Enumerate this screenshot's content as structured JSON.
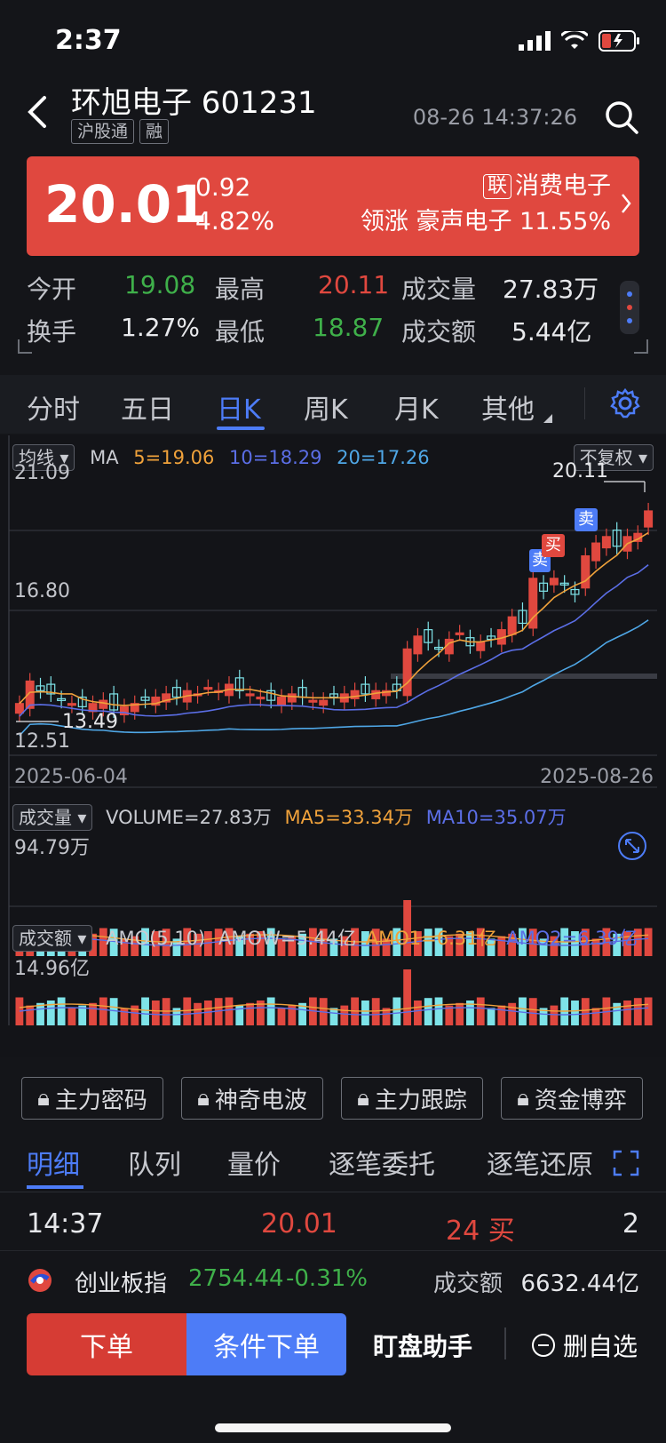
{
  "status": {
    "time": "2:37"
  },
  "header": {
    "title": "环旭电子 601231",
    "tags": [
      "沪股通",
      "融"
    ],
    "datetime": "08-26 14:37:26"
  },
  "quote": {
    "price": "20.01",
    "change": "0.92",
    "change_pct": "4.82%",
    "lian": "联",
    "sector": "消费电子",
    "leader": "领涨 豪声电子 11.55%"
  },
  "stats": {
    "open_label": "今开",
    "open": "19.08",
    "high_label": "最高",
    "high": "20.11",
    "vol_label": "成交量",
    "vol": "27.83万",
    "turnover_label": "换手",
    "turnover": "1.27%",
    "low_label": "最低",
    "low": "18.87",
    "amount_label": "成交额",
    "amount": "5.44亿"
  },
  "tabs": [
    "分时",
    "五日",
    "日K",
    "周K",
    "月K",
    "其他"
  ],
  "kline": {
    "indicator_pill": "均线",
    "ma_label": "MA",
    "ma5": "5=19.06",
    "ma10": "10=18.29",
    "ma20": "20=17.26",
    "adjust_pill": "不复权",
    "y_top": "21.09",
    "y_mid": "16.80",
    "y_bottom": "12.51",
    "max_label": "20.11",
    "min_label": "13.49",
    "date_start": "2025-06-04",
    "date_end": "2025-08-26",
    "sell_label": "卖",
    "buy_label": "买",
    "colors": {
      "up": "#e0483f",
      "down": "#7ee3e8",
      "ma5": "#f0a23b",
      "ma10": "#5b6ee6",
      "ma20": "#4fa7e6"
    }
  },
  "volume": {
    "pill": "成交量",
    "volume": "VOLUME=27.83万",
    "ma5": "MA5=33.34万",
    "ma10": "MA10=35.07万",
    "max": "94.79万"
  },
  "amount": {
    "pill": "成交额",
    "params": "AMO(5,10)",
    "amow": "AMOW=5.44亿",
    "amo1": "AMO1=6.31亿",
    "amo2": "AMO2=6.39亿",
    "max": "14.96亿"
  },
  "locks": [
    "主力密码",
    "神奇电波",
    "主力跟踪",
    "资金博弈"
  ],
  "detail_tabs": [
    "明细",
    "队列",
    "量价",
    "逐笔委托",
    "逐笔还原"
  ],
  "trade": {
    "time": "14:37",
    "price": "20.01",
    "qty": "24 买",
    "count": "2"
  },
  "index": {
    "name": "创业板指",
    "value": "2754.44",
    "pct": "-0.31%",
    "amount_label": "成交额",
    "amount": "6632.44亿"
  },
  "bottom": {
    "order": "下单",
    "cond_order": "条件下单",
    "helper": "盯盘助手",
    "del": "删自选"
  }
}
